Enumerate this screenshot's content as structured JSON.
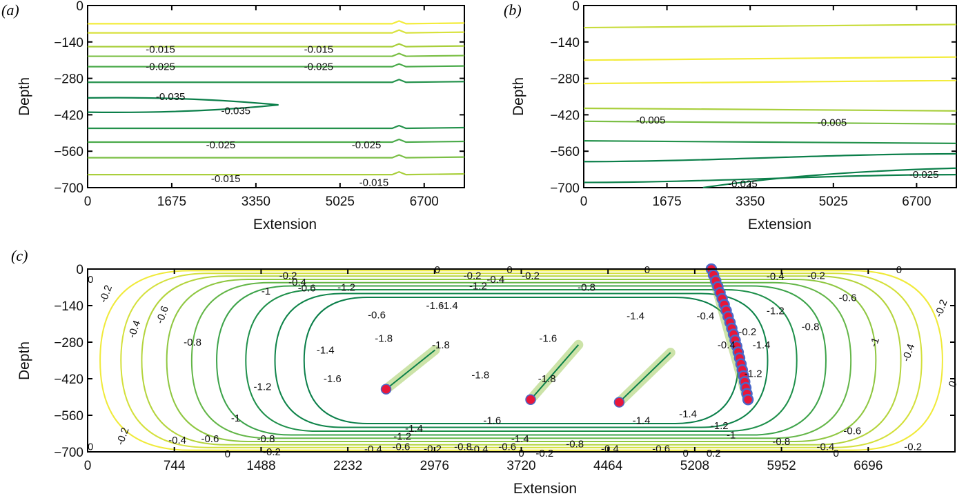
{
  "colors": {
    "contour_light": "#f3ec3a",
    "contour_mid": "#8fc23f",
    "contour_dark": "#0b7f4a",
    "marker_red": "#e8173a",
    "marker_blue": "#4a67c9"
  },
  "chart_data": [
    {
      "type": "contour",
      "panel_label": "(a)",
      "xlabel": "Extension",
      "ylabel": "Depth",
      "xlim": [
        0,
        7500
      ],
      "ylim": [
        -700,
        0
      ],
      "xticks": [
        0,
        1675,
        3350,
        5025,
        6700
      ],
      "yticks": [
        0,
        -140,
        -280,
        -420,
        -560,
        -700
      ],
      "contours": [
        {
          "level": -0.005,
          "y": -70,
          "color": "#f3ec3a"
        },
        {
          "level": -0.01,
          "y": -105,
          "color": "#d8e23d"
        },
        {
          "level": -0.015,
          "y": -158,
          "color": "#a9cf3c"
        },
        {
          "level": -0.02,
          "y": -195,
          "color": "#7bbf45"
        },
        {
          "level": -0.025,
          "y": -235,
          "color": "#4aaa4a"
        },
        {
          "level": -0.03,
          "y": -295,
          "color": "#23914b"
        },
        {
          "level": -0.035,
          "y": -355,
          "color": "#0b7f4a"
        },
        {
          "level": -0.035,
          "y": -410,
          "color": "#0b7f4a"
        },
        {
          "level": -0.03,
          "y": -472,
          "color": "#23914b"
        },
        {
          "level": -0.025,
          "y": -525,
          "color": "#4aaa4a"
        },
        {
          "level": -0.02,
          "y": -585,
          "color": "#7bbf45"
        },
        {
          "level": -0.015,
          "y": -650,
          "color": "#a9cf3c"
        }
      ],
      "labels": [
        {
          "text": "-0.015",
          "x": 1450,
          "y": -168
        },
        {
          "text": "-0.015",
          "x": 4600,
          "y": -168
        },
        {
          "text": "-0.025",
          "x": 1450,
          "y": -235
        },
        {
          "text": "-0.025",
          "x": 4600,
          "y": -235
        },
        {
          "text": "-0.035",
          "x": 1650,
          "y": -350
        },
        {
          "text": "-0.035",
          "x": 2950,
          "y": -405
        },
        {
          "text": "-0.025",
          "x": 2650,
          "y": -535
        },
        {
          "text": "-0.025",
          "x": 5550,
          "y": -535
        },
        {
          "text": "-0.015",
          "x": 2750,
          "y": -665
        },
        {
          "text": "-0.015",
          "x": 5700,
          "y": -680
        }
      ]
    },
    {
      "type": "contour",
      "panel_label": "(b)",
      "xlabel": "Extension",
      "ylabel": "Depth",
      "xlim": [
        0,
        7500
      ],
      "ylim": [
        -700,
        0
      ],
      "xticks": [
        0,
        1675,
        3350,
        5025,
        6700
      ],
      "yticks": [
        0,
        -140,
        -280,
        -420,
        -560,
        -700
      ],
      "contours": [
        {
          "level": 0.0,
          "y": -85,
          "color": "#c8dc3c"
        },
        {
          "level": 0.0,
          "y": -210,
          "color": "#f3ec3a"
        },
        {
          "level": 0.0,
          "y": -300,
          "color": "#f3ec3a"
        },
        {
          "level": -0.005,
          "y": -395,
          "color": "#a9cf3c"
        },
        {
          "level": -0.005,
          "y": -445,
          "color": "#7bbf45"
        },
        {
          "level": -0.015,
          "y": -520,
          "color": "#23914b"
        },
        {
          "level": -0.02,
          "y": -600,
          "color": "#0b7f4a"
        },
        {
          "level": -0.025,
          "y": -680,
          "color": "#0b7f4a"
        }
      ],
      "labels": [
        {
          "text": "-0.005",
          "x": 1350,
          "y": -440
        },
        {
          "text": "-0.005",
          "x": 5000,
          "y": -450
        },
        {
          "text": "-0.025",
          "x": 3200,
          "y": -685
        },
        {
          "text": "-0.025",
          "x": 6850,
          "y": -650
        }
      ]
    },
    {
      "type": "contour",
      "panel_label": "(c)",
      "xlabel": "Extension",
      "ylabel": "Depth",
      "xlim": [
        0,
        7440
      ],
      "ylim": [
        -700,
        0
      ],
      "xticks": [
        0,
        744,
        1488,
        2232,
        2976,
        3720,
        4464,
        5208,
        5952,
        6696
      ],
      "yticks": [
        0,
        -140,
        -280,
        -420,
        -560,
        -700
      ],
      "contours": [
        {
          "level": -0.2,
          "inset": 0.03,
          "color": "#f0ea3a"
        },
        {
          "level": -0.4,
          "inset": 0.08,
          "color": "#d4e03c"
        },
        {
          "level": -0.6,
          "inset": 0.13,
          "color": "#b4d43d"
        },
        {
          "level": -0.8,
          "inset": 0.19,
          "color": "#8fc741"
        },
        {
          "level": -1.0,
          "inset": 0.25,
          "color": "#64b648"
        },
        {
          "level": -1.2,
          "inset": 0.31,
          "color": "#3da34a"
        },
        {
          "level": -1.4,
          "inset": 0.38,
          "color": "#1f904b"
        },
        {
          "level": -1.6,
          "inset": 0.45,
          "color": "#0f844a"
        },
        {
          "level": -1.8,
          "inset": 0.52,
          "color": "#0b7f4a"
        }
      ],
      "wells": [
        {
          "x": [
            2560,
            2980
          ],
          "y": [
            -460,
            -310
          ]
        },
        {
          "x": [
            3800,
            4210
          ],
          "y": [
            -500,
            -290
          ]
        },
        {
          "x": [
            4560,
            5000
          ],
          "y": [
            -510,
            -320
          ]
        },
        {
          "x": [
            5350,
            5660
          ],
          "y": [
            0,
            -500
          ]
        }
      ],
      "labels": [
        {
          "text": "0",
          "x": 3000,
          "y": -2
        },
        {
          "text": "0",
          "x": 3620,
          "y": -2
        },
        {
          "text": "0",
          "x": 4800,
          "y": -2
        },
        {
          "text": "0",
          "x": 6960,
          "y": -2
        },
        {
          "text": "-0.2",
          "x": 1720,
          "y": -25
        },
        {
          "text": "-0.2",
          "x": 3300,
          "y": -25
        },
        {
          "text": "-0.2",
          "x": 3800,
          "y": -25
        },
        {
          "text": "-0.2",
          "x": 6250,
          "y": -25
        },
        {
          "text": "-0.4",
          "x": 1800,
          "y": -50
        },
        {
          "text": "-0.4",
          "x": 3500,
          "y": -40
        },
        {
          "text": "-0.4",
          "x": 5900,
          "y": -28
        },
        {
          "text": "-0.6",
          "x": 1880,
          "y": -72
        },
        {
          "text": "-0.6",
          "x": 6520,
          "y": -110
        },
        {
          "text": "-0.6",
          "x": 2480,
          "y": -175
        },
        {
          "text": "-0.8",
          "x": 4280,
          "y": -70
        },
        {
          "text": "-0.8",
          "x": 6200,
          "y": -220
        },
        {
          "text": "-0.8",
          "x": 900,
          "y": -280
        },
        {
          "text": "-1",
          "x": 1530,
          "y": -85
        },
        {
          "text": "-1",
          "x": 6750,
          "y": -280
        },
        {
          "text": "-1",
          "x": 1270,
          "y": -570
        },
        {
          "text": "-1.2",
          "x": 2220,
          "y": -70
        },
        {
          "text": "-1.2",
          "x": 3350,
          "y": -65
        },
        {
          "text": "-1.2",
          "x": 1500,
          "y": -450
        },
        {
          "text": "-1.2",
          "x": 5900,
          "y": -160
        },
        {
          "text": "-1.4",
          "x": 2040,
          "y": -310
        },
        {
          "text": "-1.4",
          "x": 3100,
          "y": -140
        },
        {
          "text": "-1.4",
          "x": 4700,
          "y": -180
        },
        {
          "text": "-1.4",
          "x": 2800,
          "y": -610
        },
        {
          "text": "-1.4",
          "x": 4750,
          "y": -580
        },
        {
          "text": "-1.6",
          "x": 2980,
          "y": -140
        },
        {
          "text": "-1.6",
          "x": 2100,
          "y": -420
        },
        {
          "text": "-1.6",
          "x": 3950,
          "y": -265
        },
        {
          "text": "-1.6",
          "x": 3470,
          "y": -580
        },
        {
          "text": "-1.8",
          "x": 2540,
          "y": -265
        },
        {
          "text": "-1.8",
          "x": 3030,
          "y": -290
        },
        {
          "text": "-1.8",
          "x": 3370,
          "y": -405
        },
        {
          "text": "-1.8",
          "x": 3940,
          "y": -420
        },
        {
          "text": "-0.2",
          "x": 155,
          "y": -95
        },
        {
          "text": "-0.4",
          "x": 400,
          "y": -230
        },
        {
          "text": "-0.6",
          "x": 640,
          "y": -175
        },
        {
          "text": "-0.2",
          "x": 300,
          "y": -640
        },
        {
          "text": "-0.4",
          "x": 770,
          "y": -655
        },
        {
          "text": "-0.6",
          "x": 1050,
          "y": -650
        },
        {
          "text": "-0.8",
          "x": 1530,
          "y": -650
        },
        {
          "text": "-1.2",
          "x": 2700,
          "y": -640
        },
        {
          "text": "-1.4",
          "x": 3710,
          "y": -650
        },
        {
          "text": "-0.8",
          "x": 3220,
          "y": -680
        },
        {
          "text": "-0.2",
          "x": 2960,
          "y": -688
        },
        {
          "text": "-0.4",
          "x": 2450,
          "y": -690
        },
        {
          "text": "-0.2",
          "x": 1580,
          "y": -700
        },
        {
          "text": "0",
          "x": 1200,
          "y": -708
        },
        {
          "text": "-0.6",
          "x": 2690,
          "y": -680
        },
        {
          "text": "-0.4",
          "x": 3360,
          "y": -690
        },
        {
          "text": "-0.6",
          "x": 3600,
          "y": -680
        },
        {
          "text": "0",
          "x": 3720,
          "y": -705
        },
        {
          "text": "-0.2",
          "x": 3920,
          "y": -705
        },
        {
          "text": "-0.4",
          "x": 4480,
          "y": -688
        },
        {
          "text": "-0.6",
          "x": 4920,
          "y": -688
        },
        {
          "text": "-0.8",
          "x": 4180,
          "y": -670
        },
        {
          "text": "0",
          "x": 5130,
          "y": -705
        },
        {
          "text": "0.2",
          "x": 5370,
          "y": -705
        },
        {
          "text": "-1",
          "x": 5520,
          "y": -635
        },
        {
          "text": "-1.2",
          "x": 5420,
          "y": -600
        },
        {
          "text": "-1.4",
          "x": 5150,
          "y": -555
        },
        {
          "text": "-0.8",
          "x": 5950,
          "y": -660
        },
        {
          "text": "-0.4",
          "x": 6330,
          "y": -680
        },
        {
          "text": "-0.6",
          "x": 6560,
          "y": -620
        },
        {
          "text": "-0.2",
          "x": 7080,
          "y": -680
        },
        {
          "text": "0",
          "x": 6420,
          "y": -705
        },
        {
          "text": "0",
          "x": 25,
          "y": -680
        },
        {
          "text": "0",
          "x": 25,
          "y": -40
        },
        {
          "text": "-0.4",
          "x": 7040,
          "y": -320
        },
        {
          "text": "-0.2",
          "x": 7320,
          "y": -150
        },
        {
          "text": "0",
          "x": 7420,
          "y": -440
        },
        {
          "text": "-0.2",
          "x": 5660,
          "y": -240
        },
        {
          "text": "-0.4",
          "x": 5300,
          "y": -180
        },
        {
          "text": "-1.2",
          "x": 5710,
          "y": -400
        },
        {
          "text": "-1.4",
          "x": 5780,
          "y": -290
        },
        {
          "text": "-0.4",
          "x": 5480,
          "y": -290
        }
      ]
    }
  ]
}
